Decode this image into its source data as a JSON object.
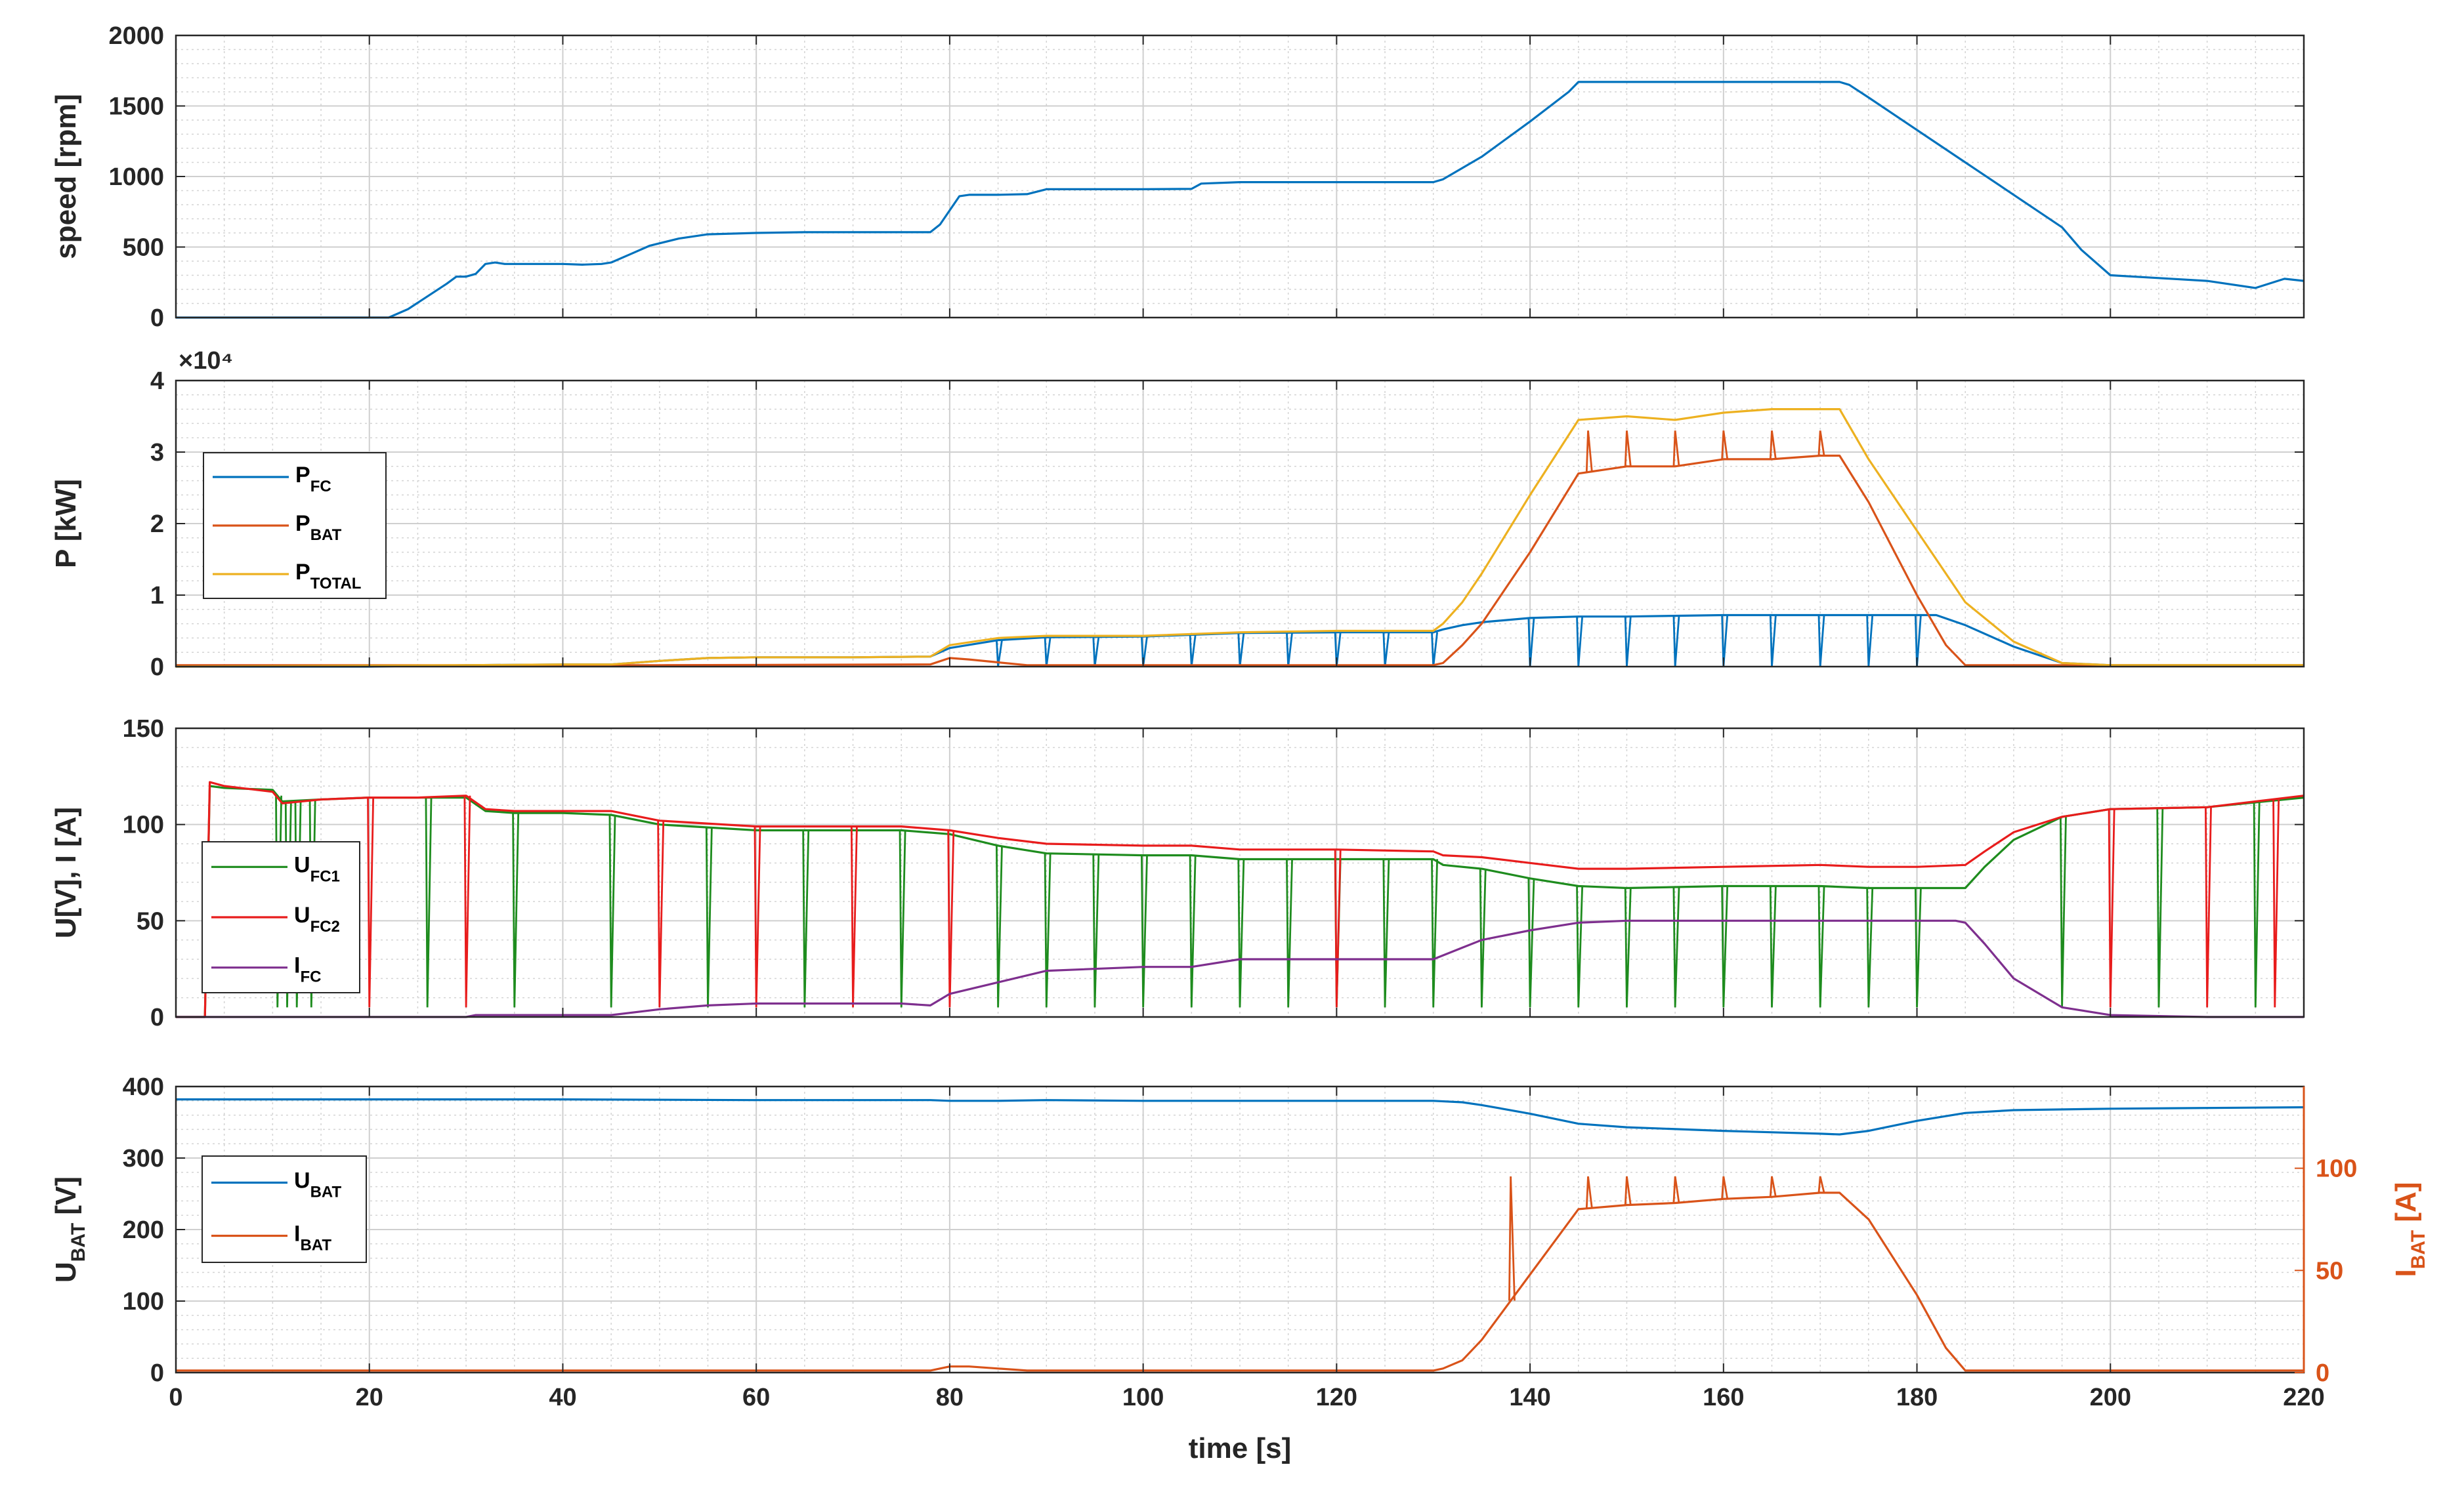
{
  "chart_data": [
    {
      "type": "line",
      "ylabel": "speed [rpm]",
      "xlim": [
        0,
        220
      ],
      "ylim": [
        0,
        2000
      ],
      "xticks": [
        0,
        20,
        40,
        60,
        80,
        100,
        120,
        140,
        160,
        180,
        200,
        220
      ],
      "yticks": [
        0,
        500,
        1000,
        1500,
        2000
      ],
      "grid": true,
      "series": [
        {
          "color": "#0072BD",
          "x": [
            0,
            20,
            22,
            24,
            26,
            28,
            29,
            30,
            31,
            32,
            33,
            34,
            36,
            40,
            42,
            44,
            45,
            47,
            49,
            52,
            55,
            60,
            65,
            70,
            78,
            79,
            80,
            81,
            82,
            85,
            88,
            90,
            95,
            100,
            105,
            106,
            110,
            115,
            120,
            130,
            131,
            133,
            135,
            140,
            144,
            145,
            150,
            160,
            170,
            172,
            173,
            175,
            180,
            185,
            190,
            195,
            197,
            200,
            205,
            210,
            215,
            218,
            220
          ],
          "y": [
            0,
            0,
            0,
            60,
            150,
            240,
            290,
            290,
            310,
            380,
            390,
            380,
            380,
            380,
            375,
            380,
            390,
            450,
            510,
            560,
            590,
            600,
            605,
            605,
            605,
            660,
            760,
            860,
            870,
            870,
            875,
            910,
            910,
            910,
            912,
            950,
            960,
            960,
            960,
            960,
            980,
            1060,
            1140,
            1390,
            1600,
            1670,
            1670,
            1670,
            1670,
            1670,
            1650,
            1560,
            1330,
            1100,
            870,
            640,
            480,
            300,
            280,
            260,
            210,
            275,
            260
          ]
        }
      ]
    },
    {
      "type": "line",
      "ylabel": "P [kW]",
      "multiplier": "×10⁴",
      "xlim": [
        0,
        220
      ],
      "ylim": [
        0,
        4
      ],
      "xticks": [
        0,
        20,
        40,
        60,
        80,
        100,
        120,
        140,
        160,
        180,
        200,
        220
      ],
      "yticks": [
        0,
        1,
        2,
        3,
        4
      ],
      "grid": true,
      "legend": "left",
      "series": [
        {
          "name": "P_FC",
          "legend_main": "P",
          "legend_sub": "FC",
          "color": "#0072BD",
          "x": [
            0,
            10,
            20,
            30,
            40,
            45,
            50,
            55,
            60,
            70,
            78,
            80,
            85,
            90,
            100,
            110,
            120,
            130,
            131,
            133,
            135,
            140,
            145,
            150,
            160,
            170,
            175,
            180,
            182,
            185,
            190,
            195,
            200,
            220
          ],
          "y": [
            0,
            0,
            0,
            0.02,
            0.03,
            0.03,
            0.08,
            0.12,
            0.13,
            0.13,
            0.14,
            0.26,
            0.37,
            0.41,
            0.42,
            0.47,
            0.48,
            0.48,
            0.52,
            0.58,
            0.62,
            0.68,
            0.7,
            0.7,
            0.72,
            0.72,
            0.72,
            0.72,
            0.72,
            0.58,
            0.28,
            0.05,
            0.02,
            0.02
          ],
          "spikes_at": [
            85,
            90,
            95,
            100,
            105,
            110,
            115,
            120,
            125,
            130,
            140,
            145,
            150,
            155,
            160,
            165,
            170,
            175,
            180
          ],
          "spike_to": 0
        },
        {
          "name": "P_BAT",
          "legend_main": "P",
          "legend_sub": "BAT",
          "color": "#D95319",
          "x": [
            0,
            50,
            78,
            80,
            82,
            85,
            88,
            90,
            130,
            131,
            133,
            135,
            140,
            145,
            150,
            155,
            160,
            165,
            170,
            172,
            175,
            180,
            183,
            185,
            190,
            200,
            220
          ],
          "y": [
            0.02,
            0.02,
            0.03,
            0.12,
            0.1,
            0.06,
            0.02,
            0.02,
            0.02,
            0.05,
            0.3,
            0.6,
            1.6,
            2.7,
            2.8,
            2.8,
            2.9,
            2.9,
            2.95,
            2.95,
            2.3,
            1.0,
            0.3,
            0.02,
            0.02,
            0.02,
            0.02
          ],
          "spikes_at": [
            146,
            150,
            155,
            160,
            165,
            170
          ],
          "spike_to": 3.3
        },
        {
          "name": "P_TOTAL",
          "legend_main": "P",
          "legend_sub": "TOTAL",
          "color": "#EDB120",
          "x": [
            0,
            30,
            40,
            45,
            50,
            55,
            60,
            70,
            78,
            80,
            85,
            90,
            100,
            110,
            120,
            130,
            131,
            133,
            135,
            140,
            145,
            150,
            155,
            160,
            165,
            170,
            172,
            175,
            180,
            185,
            190,
            195,
            200,
            220
          ],
          "y": [
            0,
            0.02,
            0.03,
            0.03,
            0.08,
            0.12,
            0.13,
            0.13,
            0.14,
            0.3,
            0.4,
            0.43,
            0.43,
            0.48,
            0.5,
            0.5,
            0.6,
            0.9,
            1.3,
            2.4,
            3.45,
            3.5,
            3.45,
            3.55,
            3.6,
            3.6,
            3.6,
            2.9,
            1.9,
            0.9,
            0.35,
            0.05,
            0.02,
            0.02
          ]
        }
      ]
    },
    {
      "type": "line",
      "ylabel": "U[V], I [A]",
      "xlim": [
        0,
        220
      ],
      "ylim": [
        0,
        150
      ],
      "xticks": [
        0,
        20,
        40,
        60,
        80,
        100,
        120,
        140,
        160,
        180,
        200,
        220
      ],
      "yticks": [
        0,
        50,
        100,
        150
      ],
      "grid": true,
      "legend": "left",
      "series": [
        {
          "name": "U_FC1",
          "legend_main": "U",
          "legend_sub": "FC1",
          "color": "#1E8C1E",
          "x": [
            0,
            3,
            3.5,
            5,
            10,
            11,
            15,
            20,
            25,
            30,
            32,
            35,
            40,
            45,
            50,
            60,
            70,
            75,
            80,
            85,
            90,
            100,
            105,
            110,
            120,
            130,
            131,
            135,
            140,
            145,
            150,
            160,
            170,
            175,
            180,
            185,
            187,
            190,
            195,
            200,
            210,
            220
          ],
          "y": [
            0,
            0,
            120,
            119,
            118,
            112,
            113,
            114,
            114,
            114,
            107,
            106,
            106,
            105,
            100,
            97,
            97,
            97,
            95,
            89,
            85,
            84,
            84,
            82,
            82,
            82,
            79,
            77,
            72,
            68,
            67,
            68,
            68,
            67,
            67,
            67,
            78,
            92,
            104,
            108,
            109,
            114
          ],
          "spikes_at": [
            10.5,
            11.5,
            12.5,
            14,
            26,
            35,
            45,
            55,
            65,
            75,
            85,
            90,
            95,
            100,
            105,
            110,
            115,
            120,
            125,
            130,
            135,
            140,
            145,
            150,
            155,
            160,
            165,
            170,
            175,
            180,
            195,
            205,
            215
          ],
          "spike_to": 5
        },
        {
          "name": "U_FC2",
          "legend_main": "U",
          "legend_sub": "FC2",
          "color": "#E81C1C",
          "x": [
            0,
            3,
            3.5,
            5,
            10,
            11,
            15,
            20,
            25,
            30,
            32,
            35,
            40,
            45,
            50,
            60,
            70,
            75,
            80,
            85,
            90,
            100,
            105,
            110,
            120,
            130,
            131,
            135,
            140,
            145,
            150,
            160,
            170,
            175,
            180,
            185,
            187,
            190,
            195,
            200,
            210,
            220
          ],
          "y": [
            0,
            0,
            122,
            120,
            117,
            111,
            113,
            114,
            114,
            115,
            108,
            107,
            107,
            107,
            102,
            99,
            99,
            99,
            97,
            93,
            90,
            89,
            89,
            87,
            87,
            86,
            84,
            83,
            80,
            77,
            77,
            78,
            79,
            78,
            78,
            79,
            86,
            96,
            104,
            108,
            109,
            115
          ],
          "spikes_at": [
            20,
            30,
            50,
            60,
            70,
            80,
            120,
            200,
            210,
            217
          ],
          "spike_to": 5
        },
        {
          "name": "I_FC",
          "legend_main": "I",
          "legend_sub": "FC",
          "color": "#7E2F8E",
          "x": [
            0,
            30,
            31,
            40,
            45,
            50,
            55,
            60,
            70,
            75,
            78,
            80,
            85,
            90,
            100,
            105,
            110,
            120,
            130,
            131,
            133,
            135,
            140,
            145,
            150,
            160,
            170,
            180,
            184,
            185,
            187,
            190,
            195,
            200,
            210,
            220
          ],
          "y": [
            0,
            0,
            1,
            1,
            1,
            4,
            6,
            7,
            7,
            7,
            6,
            12,
            18,
            24,
            26,
            26,
            30,
            30,
            30,
            32,
            36,
            40,
            45,
            49,
            50,
            50,
            50,
            50,
            50,
            49,
            38,
            20,
            5,
            1,
            0,
            0
          ]
        }
      ]
    },
    {
      "type": "line",
      "ylabel": "U_BAT [V]",
      "ylabel_main": "U",
      "ylabel_sub": "BAT",
      "ylabel_unit": " [V]",
      "ylabel_right": "I_BAT [A]",
      "ylabel_right_main": "I",
      "ylabel_right_sub": "BAT",
      "ylabel_right_unit": " [A]",
      "right_axis_color": "#D95319",
      "xlabel": "time [s]",
      "xlim": [
        0,
        220
      ],
      "ylim": [
        0,
        400
      ],
      "ylim_right": [
        0,
        140
      ],
      "xticks": [
        0,
        20,
        40,
        60,
        80,
        100,
        120,
        140,
        160,
        180,
        200,
        220
      ],
      "yticks": [
        0,
        100,
        200,
        300,
        400
      ],
      "yticks_right": [
        0,
        50,
        100
      ],
      "grid": true,
      "legend": "left",
      "series": [
        {
          "name": "U_BAT",
          "legend_main": "U",
          "legend_sub": "BAT",
          "color": "#0072BD",
          "axis": "left",
          "x": [
            0,
            20,
            40,
            60,
            78,
            80,
            85,
            90,
            100,
            120,
            130,
            133,
            135,
            140,
            145,
            150,
            160,
            170,
            172,
            175,
            180,
            185,
            190,
            200,
            220
          ],
          "y": [
            382,
            382,
            382,
            381,
            381,
            380,
            380,
            381,
            380,
            380,
            380,
            378,
            374,
            362,
            348,
            343,
            338,
            334,
            333,
            338,
            352,
            363,
            367,
            369,
            371
          ]
        },
        {
          "name": "I_BAT",
          "legend_main": "I",
          "legend_sub": "BAT",
          "color": "#D95319",
          "axis": "right",
          "x": [
            0,
            78,
            80,
            82,
            85,
            88,
            90,
            130,
            131,
            133,
            135,
            140,
            145,
            150,
            155,
            160,
            165,
            170,
            172,
            175,
            180,
            183,
            185,
            190,
            200,
            220
          ],
          "y": [
            1,
            1,
            3,
            3,
            2,
            1,
            1,
            1,
            2,
            6,
            16,
            48,
            80,
            82,
            83,
            85,
            86,
            88,
            88,
            75,
            38,
            12,
            1,
            1,
            1,
            1
          ],
          "spikes_at": [
            138,
            146,
            150,
            155,
            160,
            165,
            170
          ],
          "spike_to": 96
        }
      ]
    }
  ]
}
